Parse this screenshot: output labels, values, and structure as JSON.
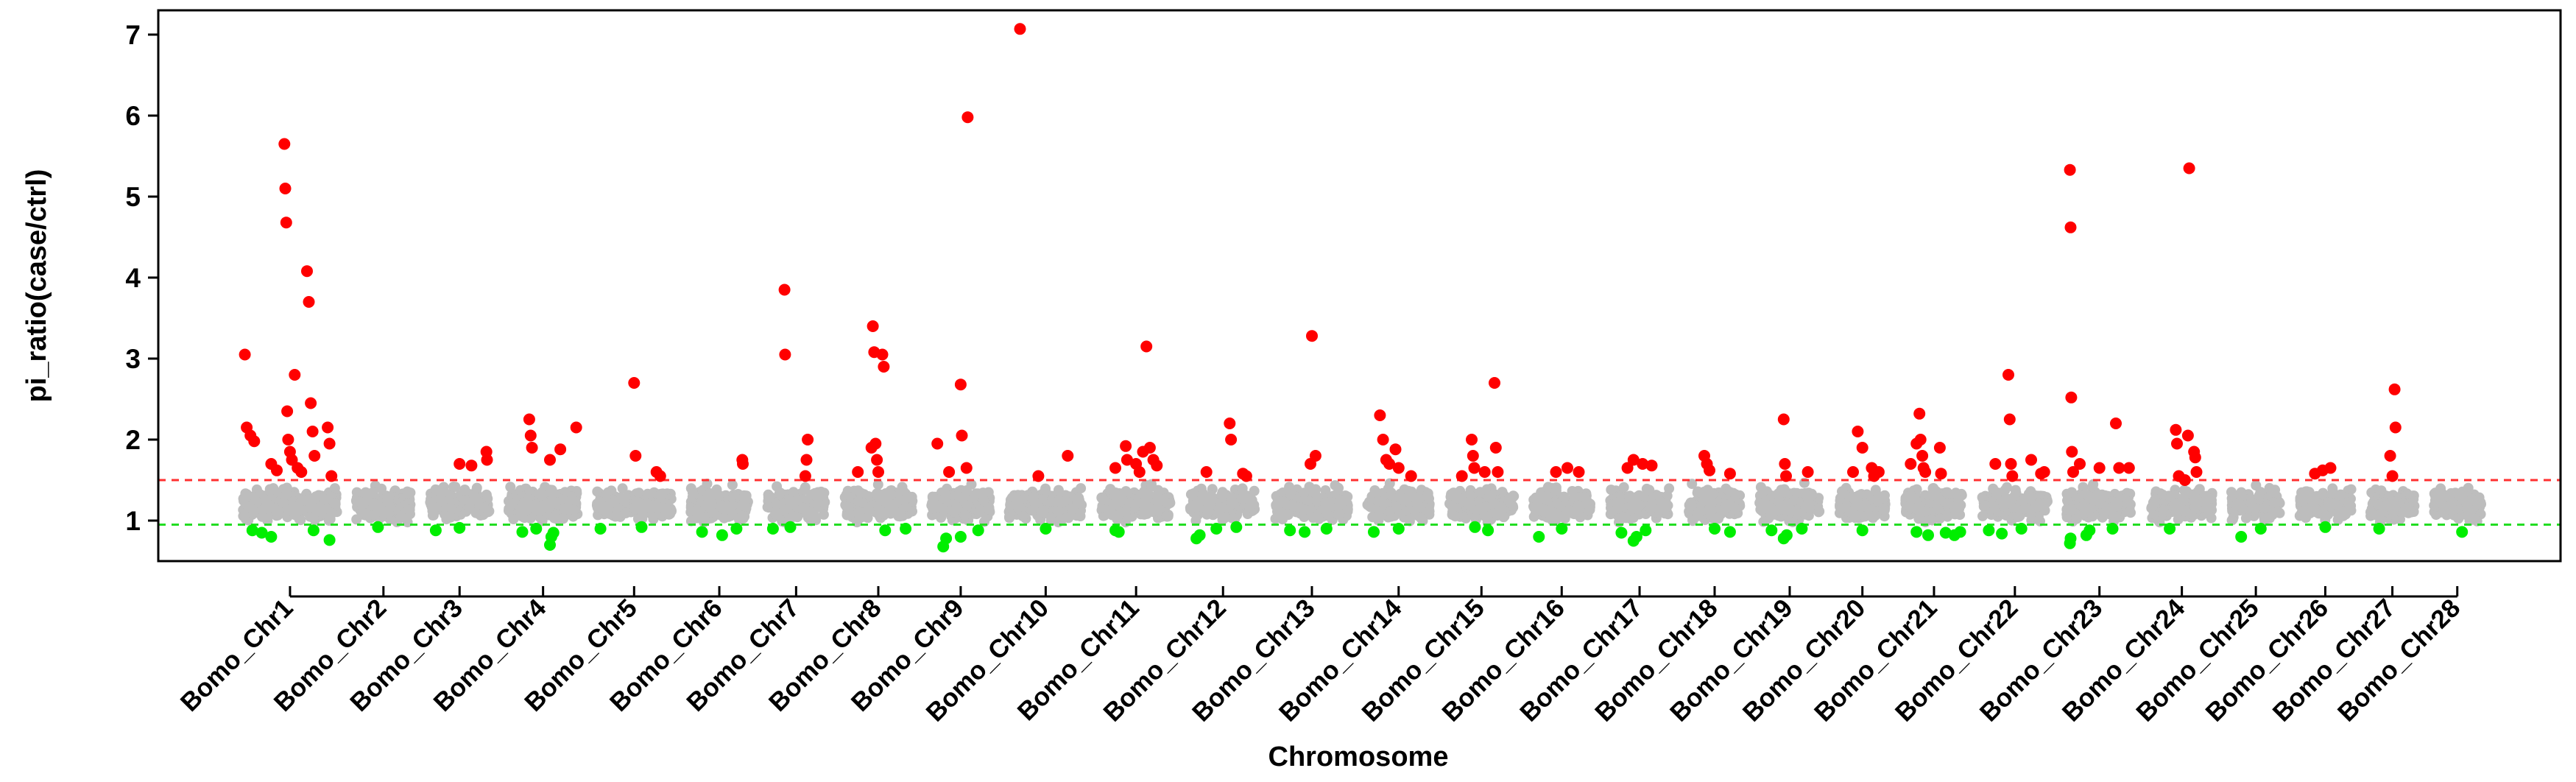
{
  "chart_data": {
    "type": "scatter",
    "title": "",
    "xlabel": "Chromosome",
    "ylabel": "pi_ratio(case/ctrl)",
    "ylim": [
      0.5,
      7.3
    ],
    "yticks": [
      1,
      2,
      3,
      4,
      5,
      6,
      7
    ],
    "grid": false,
    "thresholds": {
      "upper": 1.5,
      "lower": 0.95,
      "upper_color": "#ff3030",
      "lower_color": "#22dd22"
    },
    "colors": {
      "background_points": "#bdbdbd",
      "high_points": "#ff0000",
      "low_points": "#00ee00",
      "axis": "#000000"
    },
    "categories": [
      "Bomo_Chr1",
      "Bomo_Chr2",
      "Bomo_Chr3",
      "Bomo_Chr4",
      "Bomo_Chr5",
      "Bomo_Chr6",
      "Bomo_Chr7",
      "Bomo_Chr8",
      "Bomo_Chr9",
      "Bomo_Chr10",
      "Bomo_Chr11",
      "Bomo_Chr12",
      "Bomo_Chr13",
      "Bomo_Chr14",
      "Bomo_Chr15",
      "Bomo_Chr16",
      "Bomo_Chr17",
      "Bomo_Chr18",
      "Bomo_Chr19",
      "Bomo_Chr20",
      "Bomo_Chr21",
      "Bomo_Chr22",
      "Bomo_Chr23",
      "Bomo_Chr24",
      "Bomo_Chr25",
      "Bomo_Chr26",
      "Bomo_Chr27",
      "Bomo_Chr28"
    ],
    "chromosome_lengths_mb": [
      21.8,
      12.6,
      13.8,
      16.0,
      17.3,
      13.3,
      13.4,
      15.8,
      13.5,
      17.0,
      16.0,
      15.4,
      16.9,
      14.4,
      15.1,
      13.2,
      14.0,
      11.9,
      14.0,
      10.8,
      13.5,
      15.1,
      15.2,
      14.1,
      11.3,
      12.0,
      10.2,
      11.0
    ],
    "outliers_high": [
      {
        "chr": 1,
        "pos": 0.02,
        "value": 3.05
      },
      {
        "chr": 1,
        "pos": 0.04,
        "value": 2.15
      },
      {
        "chr": 1,
        "pos": 0.08,
        "value": 2.05
      },
      {
        "chr": 1,
        "pos": 0.12,
        "value": 1.98
      },
      {
        "chr": 1,
        "pos": 0.3,
        "value": 1.7
      },
      {
        "chr": 1,
        "pos": 0.36,
        "value": 1.62
      },
      {
        "chr": 1,
        "pos": 0.44,
        "value": 5.65
      },
      {
        "chr": 1,
        "pos": 0.45,
        "value": 5.1
      },
      {
        "chr": 1,
        "pos": 0.46,
        "value": 4.68
      },
      {
        "chr": 1,
        "pos": 0.47,
        "value": 2.35
      },
      {
        "chr": 1,
        "pos": 0.48,
        "value": 2.0
      },
      {
        "chr": 1,
        "pos": 0.5,
        "value": 1.85
      },
      {
        "chr": 1,
        "pos": 0.52,
        "value": 1.75
      },
      {
        "chr": 1,
        "pos": 0.55,
        "value": 2.8
      },
      {
        "chr": 1,
        "pos": 0.58,
        "value": 1.65
      },
      {
        "chr": 1,
        "pos": 0.62,
        "value": 1.6
      },
      {
        "chr": 1,
        "pos": 0.68,
        "value": 4.08
      },
      {
        "chr": 1,
        "pos": 0.7,
        "value": 3.7
      },
      {
        "chr": 1,
        "pos": 0.72,
        "value": 2.45
      },
      {
        "chr": 1,
        "pos": 0.74,
        "value": 2.1
      },
      {
        "chr": 1,
        "pos": 0.76,
        "value": 1.8
      },
      {
        "chr": 1,
        "pos": 0.9,
        "value": 2.15
      },
      {
        "chr": 1,
        "pos": 0.92,
        "value": 1.95
      },
      {
        "chr": 1,
        "pos": 0.94,
        "value": 1.55
      },
      {
        "chr": 3,
        "pos": 0.5,
        "value": 1.7
      },
      {
        "chr": 3,
        "pos": 0.7,
        "value": 1.68
      },
      {
        "chr": 3,
        "pos": 0.95,
        "value": 1.85
      },
      {
        "chr": 3,
        "pos": 0.96,
        "value": 1.75
      },
      {
        "chr": 4,
        "pos": 0.3,
        "value": 2.25
      },
      {
        "chr": 4,
        "pos": 0.32,
        "value": 2.05
      },
      {
        "chr": 4,
        "pos": 0.34,
        "value": 1.9
      },
      {
        "chr": 4,
        "pos": 0.6,
        "value": 1.75
      },
      {
        "chr": 4,
        "pos": 0.75,
        "value": 1.88
      },
      {
        "chr": 4,
        "pos": 0.98,
        "value": 2.15
      },
      {
        "chr": 5,
        "pos": 0.5,
        "value": 2.7
      },
      {
        "chr": 5,
        "pos": 0.52,
        "value": 1.8
      },
      {
        "chr": 5,
        "pos": 0.8,
        "value": 1.6
      },
      {
        "chr": 5,
        "pos": 0.85,
        "value": 1.55
      },
      {
        "chr": 6,
        "pos": 0.9,
        "value": 1.75
      },
      {
        "chr": 6,
        "pos": 0.91,
        "value": 1.7
      },
      {
        "chr": 7,
        "pos": 0.3,
        "value": 3.85
      },
      {
        "chr": 7,
        "pos": 0.31,
        "value": 3.05
      },
      {
        "chr": 7,
        "pos": 0.7,
        "value": 2.0
      },
      {
        "chr": 7,
        "pos": 0.68,
        "value": 1.75
      },
      {
        "chr": 7,
        "pos": 0.66,
        "value": 1.55
      },
      {
        "chr": 8,
        "pos": 0.2,
        "value": 1.6
      },
      {
        "chr": 8,
        "pos": 0.4,
        "value": 1.9
      },
      {
        "chr": 8,
        "pos": 0.42,
        "value": 3.4
      },
      {
        "chr": 8,
        "pos": 0.44,
        "value": 3.08
      },
      {
        "chr": 8,
        "pos": 0.46,
        "value": 1.95
      },
      {
        "chr": 8,
        "pos": 0.48,
        "value": 1.75
      },
      {
        "chr": 8,
        "pos": 0.5,
        "value": 1.6
      },
      {
        "chr": 8,
        "pos": 0.56,
        "value": 3.05
      },
      {
        "chr": 8,
        "pos": 0.58,
        "value": 2.9
      },
      {
        "chr": 9,
        "pos": 0.1,
        "value": 1.95
      },
      {
        "chr": 9,
        "pos": 0.3,
        "value": 1.6
      },
      {
        "chr": 9,
        "pos": 0.5,
        "value": 2.68
      },
      {
        "chr": 9,
        "pos": 0.52,
        "value": 2.05
      },
      {
        "chr": 9,
        "pos": 0.6,
        "value": 1.65
      },
      {
        "chr": 9,
        "pos": 0.62,
        "value": 5.98
      },
      {
        "chr": 10,
        "pos": 0.15,
        "value": 7.07
      },
      {
        "chr": 10,
        "pos": 0.4,
        "value": 1.55
      },
      {
        "chr": 10,
        "pos": 0.8,
        "value": 1.8
      },
      {
        "chr": 11,
        "pos": 0.2,
        "value": 1.65
      },
      {
        "chr": 11,
        "pos": 0.35,
        "value": 1.92
      },
      {
        "chr": 11,
        "pos": 0.37,
        "value": 1.75
      },
      {
        "chr": 11,
        "pos": 0.5,
        "value": 1.7
      },
      {
        "chr": 11,
        "pos": 0.55,
        "value": 1.6
      },
      {
        "chr": 11,
        "pos": 0.6,
        "value": 1.85
      },
      {
        "chr": 11,
        "pos": 0.65,
        "value": 3.15
      },
      {
        "chr": 11,
        "pos": 0.7,
        "value": 1.9
      },
      {
        "chr": 11,
        "pos": 0.75,
        "value": 1.75
      },
      {
        "chr": 11,
        "pos": 0.8,
        "value": 1.68
      },
      {
        "chr": 12,
        "pos": 0.25,
        "value": 1.6
      },
      {
        "chr": 12,
        "pos": 0.6,
        "value": 2.2
      },
      {
        "chr": 12,
        "pos": 0.62,
        "value": 2.0
      },
      {
        "chr": 12,
        "pos": 0.8,
        "value": 1.58
      },
      {
        "chr": 12,
        "pos": 0.85,
        "value": 1.55
      },
      {
        "chr": 13,
        "pos": 0.5,
        "value": 3.28
      },
      {
        "chr": 13,
        "pos": 0.48,
        "value": 1.7
      },
      {
        "chr": 13,
        "pos": 0.55,
        "value": 1.8
      },
      {
        "chr": 14,
        "pos": 0.2,
        "value": 2.3
      },
      {
        "chr": 14,
        "pos": 0.25,
        "value": 2.0
      },
      {
        "chr": 14,
        "pos": 0.3,
        "value": 1.75
      },
      {
        "chr": 14,
        "pos": 0.35,
        "value": 1.7
      },
      {
        "chr": 14,
        "pos": 0.45,
        "value": 1.88
      },
      {
        "chr": 14,
        "pos": 0.5,
        "value": 1.65
      },
      {
        "chr": 14,
        "pos": 0.7,
        "value": 1.55
      },
      {
        "chr": 15,
        "pos": 0.2,
        "value": 1.55
      },
      {
        "chr": 15,
        "pos": 0.35,
        "value": 2.0
      },
      {
        "chr": 15,
        "pos": 0.37,
        "value": 1.8
      },
      {
        "chr": 15,
        "pos": 0.39,
        "value": 1.65
      },
      {
        "chr": 15,
        "pos": 0.55,
        "value": 1.6
      },
      {
        "chr": 15,
        "pos": 0.7,
        "value": 2.7
      },
      {
        "chr": 15,
        "pos": 0.72,
        "value": 1.9
      },
      {
        "chr": 15,
        "pos": 0.75,
        "value": 1.6
      },
      {
        "chr": 16,
        "pos": 0.4,
        "value": 1.6
      },
      {
        "chr": 16,
        "pos": 0.6,
        "value": 1.65
      },
      {
        "chr": 16,
        "pos": 0.8,
        "value": 1.6
      },
      {
        "chr": 17,
        "pos": 0.3,
        "value": 1.65
      },
      {
        "chr": 17,
        "pos": 0.4,
        "value": 1.75
      },
      {
        "chr": 17,
        "pos": 0.55,
        "value": 1.7
      },
      {
        "chr": 17,
        "pos": 0.7,
        "value": 1.68
      },
      {
        "chr": 18,
        "pos": 0.3,
        "value": 1.8
      },
      {
        "chr": 18,
        "pos": 0.35,
        "value": 1.7
      },
      {
        "chr": 18,
        "pos": 0.4,
        "value": 1.62
      },
      {
        "chr": 18,
        "pos": 0.8,
        "value": 1.58
      },
      {
        "chr": 19,
        "pos": 0.4,
        "value": 2.25
      },
      {
        "chr": 19,
        "pos": 0.42,
        "value": 1.7
      },
      {
        "chr": 19,
        "pos": 0.44,
        "value": 1.55
      },
      {
        "chr": 19,
        "pos": 0.8,
        "value": 1.6
      },
      {
        "chr": 20,
        "pos": 0.3,
        "value": 1.6
      },
      {
        "chr": 20,
        "pos": 0.4,
        "value": 2.1
      },
      {
        "chr": 20,
        "pos": 0.5,
        "value": 1.9
      },
      {
        "chr": 20,
        "pos": 0.7,
        "value": 1.65
      },
      {
        "chr": 20,
        "pos": 0.75,
        "value": 1.55
      },
      {
        "chr": 20,
        "pos": 0.85,
        "value": 1.6
      },
      {
        "chr": 21,
        "pos": 0.1,
        "value": 1.7
      },
      {
        "chr": 21,
        "pos": 0.2,
        "value": 1.95
      },
      {
        "chr": 21,
        "pos": 0.25,
        "value": 2.32
      },
      {
        "chr": 21,
        "pos": 0.27,
        "value": 2.0
      },
      {
        "chr": 21,
        "pos": 0.3,
        "value": 1.8
      },
      {
        "chr": 21,
        "pos": 0.32,
        "value": 1.65
      },
      {
        "chr": 21,
        "pos": 0.35,
        "value": 1.6
      },
      {
        "chr": 21,
        "pos": 0.6,
        "value": 1.9
      },
      {
        "chr": 21,
        "pos": 0.62,
        "value": 1.58
      },
      {
        "chr": 22,
        "pos": 0.2,
        "value": 1.7
      },
      {
        "chr": 22,
        "pos": 0.4,
        "value": 2.8
      },
      {
        "chr": 22,
        "pos": 0.42,
        "value": 2.25
      },
      {
        "chr": 22,
        "pos": 0.44,
        "value": 1.7
      },
      {
        "chr": 22,
        "pos": 0.46,
        "value": 1.55
      },
      {
        "chr": 22,
        "pos": 0.75,
        "value": 1.75
      },
      {
        "chr": 22,
        "pos": 0.9,
        "value": 1.58
      },
      {
        "chr": 22,
        "pos": 0.95,
        "value": 1.6
      },
      {
        "chr": 23,
        "pos": 0.05,
        "value": 5.33
      },
      {
        "chr": 23,
        "pos": 0.06,
        "value": 4.62
      },
      {
        "chr": 23,
        "pos": 0.07,
        "value": 2.52
      },
      {
        "chr": 23,
        "pos": 0.08,
        "value": 1.85
      },
      {
        "chr": 23,
        "pos": 0.1,
        "value": 1.6
      },
      {
        "chr": 23,
        "pos": 0.2,
        "value": 1.7
      },
      {
        "chr": 23,
        "pos": 0.5,
        "value": 1.65
      },
      {
        "chr": 23,
        "pos": 0.75,
        "value": 2.2
      },
      {
        "chr": 23,
        "pos": 0.8,
        "value": 1.65
      },
      {
        "chr": 23,
        "pos": 0.95,
        "value": 1.65
      },
      {
        "chr": 24,
        "pos": 0.4,
        "value": 2.12
      },
      {
        "chr": 24,
        "pos": 0.42,
        "value": 1.95
      },
      {
        "chr": 24,
        "pos": 0.45,
        "value": 1.55
      },
      {
        "chr": 24,
        "pos": 0.55,
        "value": 1.5
      },
      {
        "chr": 24,
        "pos": 0.6,
        "value": 2.05
      },
      {
        "chr": 24,
        "pos": 0.7,
        "value": 1.85
      },
      {
        "chr": 24,
        "pos": 0.72,
        "value": 1.78
      },
      {
        "chr": 24,
        "pos": 0.74,
        "value": 1.6
      },
      {
        "chr": 24,
        "pos": 0.62,
        "value": 5.35
      },
      {
        "chr": 26,
        "pos": 0.3,
        "value": 1.58
      },
      {
        "chr": 26,
        "pos": 0.45,
        "value": 1.62
      },
      {
        "chr": 26,
        "pos": 0.6,
        "value": 1.65
      },
      {
        "chr": 27,
        "pos": 0.45,
        "value": 1.8
      },
      {
        "chr": 27,
        "pos": 0.55,
        "value": 2.62
      },
      {
        "chr": 27,
        "pos": 0.57,
        "value": 2.15
      },
      {
        "chr": 27,
        "pos": 0.5,
        "value": 1.55
      }
    ],
    "outliers_low": [
      {
        "chr": 1,
        "pos": 0.1,
        "value": 0.88
      },
      {
        "chr": 1,
        "pos": 0.2,
        "value": 0.85
      },
      {
        "chr": 1,
        "pos": 0.3,
        "value": 0.8
      },
      {
        "chr": 1,
        "pos": 0.75,
        "value": 0.88
      },
      {
        "chr": 1,
        "pos": 0.92,
        "value": 0.76
      },
      {
        "chr": 2,
        "pos": 0.4,
        "value": 0.92
      },
      {
        "chr": 3,
        "pos": 0.1,
        "value": 0.88
      },
      {
        "chr": 3,
        "pos": 0.5,
        "value": 0.91
      },
      {
        "chr": 4,
        "pos": 0.2,
        "value": 0.86
      },
      {
        "chr": 4,
        "pos": 0.4,
        "value": 0.9
      },
      {
        "chr": 4,
        "pos": 0.6,
        "value": 0.7
      },
      {
        "chr": 4,
        "pos": 0.62,
        "value": 0.8
      },
      {
        "chr": 4,
        "pos": 0.65,
        "value": 0.85
      },
      {
        "chr": 5,
        "pos": 0.05,
        "value": 0.9
      },
      {
        "chr": 5,
        "pos": 0.6,
        "value": 0.92
      },
      {
        "chr": 6,
        "pos": 0.2,
        "value": 0.86
      },
      {
        "chr": 6,
        "pos": 0.55,
        "value": 0.82
      },
      {
        "chr": 6,
        "pos": 0.8,
        "value": 0.9
      },
      {
        "chr": 7,
        "pos": 0.1,
        "value": 0.9
      },
      {
        "chr": 7,
        "pos": 0.4,
        "value": 0.92
      },
      {
        "chr": 8,
        "pos": 0.6,
        "value": 0.88
      },
      {
        "chr": 8,
        "pos": 0.9,
        "value": 0.9
      },
      {
        "chr": 9,
        "pos": 0.2,
        "value": 0.68
      },
      {
        "chr": 9,
        "pos": 0.25,
        "value": 0.78
      },
      {
        "chr": 9,
        "pos": 0.5,
        "value": 0.8
      },
      {
        "chr": 9,
        "pos": 0.8,
        "value": 0.88
      },
      {
        "chr": 10,
        "pos": 0.5,
        "value": 0.9
      },
      {
        "chr": 11,
        "pos": 0.2,
        "value": 0.88
      },
      {
        "chr": 11,
        "pos": 0.25,
        "value": 0.86
      },
      {
        "chr": 12,
        "pos": 0.1,
        "value": 0.78
      },
      {
        "chr": 12,
        "pos": 0.15,
        "value": 0.82
      },
      {
        "chr": 12,
        "pos": 0.4,
        "value": 0.9
      },
      {
        "chr": 12,
        "pos": 0.7,
        "value": 0.92
      },
      {
        "chr": 13,
        "pos": 0.2,
        "value": 0.88
      },
      {
        "chr": 13,
        "pos": 0.4,
        "value": 0.86
      },
      {
        "chr": 13,
        "pos": 0.7,
        "value": 0.9
      },
      {
        "chr": 14,
        "pos": 0.1,
        "value": 0.86
      },
      {
        "chr": 14,
        "pos": 0.5,
        "value": 0.9
      },
      {
        "chr": 15,
        "pos": 0.4,
        "value": 0.92
      },
      {
        "chr": 15,
        "pos": 0.6,
        "value": 0.88
      },
      {
        "chr": 16,
        "pos": 0.1,
        "value": 0.8
      },
      {
        "chr": 16,
        "pos": 0.5,
        "value": 0.9
      },
      {
        "chr": 17,
        "pos": 0.2,
        "value": 0.85
      },
      {
        "chr": 17,
        "pos": 0.4,
        "value": 0.75
      },
      {
        "chr": 17,
        "pos": 0.45,
        "value": 0.8
      },
      {
        "chr": 17,
        "pos": 0.6,
        "value": 0.88
      },
      {
        "chr": 18,
        "pos": 0.5,
        "value": 0.9
      },
      {
        "chr": 18,
        "pos": 0.8,
        "value": 0.86
      },
      {
        "chr": 19,
        "pos": 0.2,
        "value": 0.88
      },
      {
        "chr": 19,
        "pos": 0.4,
        "value": 0.78
      },
      {
        "chr": 19,
        "pos": 0.45,
        "value": 0.82
      },
      {
        "chr": 19,
        "pos": 0.7,
        "value": 0.9
      },
      {
        "chr": 20,
        "pos": 0.5,
        "value": 0.88
      },
      {
        "chr": 21,
        "pos": 0.2,
        "value": 0.86
      },
      {
        "chr": 21,
        "pos": 0.4,
        "value": 0.82
      },
      {
        "chr": 21,
        "pos": 0.7,
        "value": 0.85
      },
      {
        "chr": 21,
        "pos": 0.85,
        "value": 0.82
      },
      {
        "chr": 21,
        "pos": 0.95,
        "value": 0.86
      },
      {
        "chr": 22,
        "pos": 0.1,
        "value": 0.88
      },
      {
        "chr": 22,
        "pos": 0.3,
        "value": 0.84
      },
      {
        "chr": 22,
        "pos": 0.6,
        "value": 0.9
      },
      {
        "chr": 23,
        "pos": 0.05,
        "value": 0.72
      },
      {
        "chr": 23,
        "pos": 0.06,
        "value": 0.78
      },
      {
        "chr": 23,
        "pos": 0.3,
        "value": 0.82
      },
      {
        "chr": 23,
        "pos": 0.35,
        "value": 0.88
      },
      {
        "chr": 23,
        "pos": 0.7,
        "value": 0.9
      },
      {
        "chr": 24,
        "pos": 0.3,
        "value": 0.9
      },
      {
        "chr": 25,
        "pos": 0.2,
        "value": 0.8
      },
      {
        "chr": 25,
        "pos": 0.6,
        "value": 0.9
      },
      {
        "chr": 26,
        "pos": 0.5,
        "value": 0.92
      },
      {
        "chr": 27,
        "pos": 0.2,
        "value": 0.9
      },
      {
        "chr": 28,
        "pos": 0.6,
        "value": 0.86
      }
    ]
  }
}
